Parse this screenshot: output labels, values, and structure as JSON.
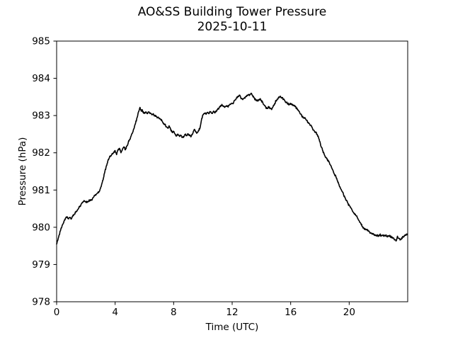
{
  "title": {
    "line1": "AO&SS Building Tower Pressure",
    "line2": "2025-10-11"
  },
  "chart_data": {
    "type": "line",
    "title": "AO&SS Building Tower Pressure",
    "subtitle": "2025-10-11",
    "xlabel": "Time (UTC)",
    "ylabel": "Pressure (hPa)",
    "xlim": [
      0,
      24
    ],
    "ylim": [
      978,
      985
    ],
    "xticks": [
      0,
      4,
      8,
      12,
      16,
      20
    ],
    "yticks": [
      978,
      979,
      980,
      981,
      982,
      983,
      984,
      985
    ],
    "grid": false,
    "legend": "none",
    "line_color": "#000000",
    "background_color": "#ffffff",
    "series": [
      {
        "name": "pressure",
        "units": "hPa",
        "points": [
          [
            0.0,
            979.55
          ],
          [
            0.08,
            979.65
          ],
          [
            0.16,
            979.78
          ],
          [
            0.25,
            979.9
          ],
          [
            0.33,
            979.98
          ],
          [
            0.42,
            980.08
          ],
          [
            0.5,
            980.16
          ],
          [
            0.6,
            980.24
          ],
          [
            0.7,
            980.28
          ],
          [
            0.8,
            980.24
          ],
          [
            0.9,
            980.26
          ],
          [
            1.0,
            980.22
          ],
          [
            1.1,
            980.3
          ],
          [
            1.2,
            980.35
          ],
          [
            1.3,
            980.4
          ],
          [
            1.4,
            980.44
          ],
          [
            1.5,
            980.5
          ],
          [
            1.6,
            980.57
          ],
          [
            1.7,
            980.63
          ],
          [
            1.8,
            980.67
          ],
          [
            1.9,
            980.71
          ],
          [
            2.0,
            980.69
          ],
          [
            2.1,
            980.67
          ],
          [
            2.2,
            980.71
          ],
          [
            2.3,
            980.74
          ],
          [
            2.4,
            980.73
          ],
          [
            2.5,
            980.8
          ],
          [
            2.6,
            980.85
          ],
          [
            2.7,
            980.88
          ],
          [
            2.8,
            980.92
          ],
          [
            2.9,
            980.96
          ],
          [
            3.0,
            981.05
          ],
          [
            3.1,
            981.18
          ],
          [
            3.2,
            981.32
          ],
          [
            3.3,
            981.5
          ],
          [
            3.4,
            981.65
          ],
          [
            3.5,
            981.78
          ],
          [
            3.6,
            981.86
          ],
          [
            3.7,
            981.92
          ],
          [
            3.8,
            981.98
          ],
          [
            3.9,
            982.02
          ],
          [
            4.0,
            982.06
          ],
          [
            4.1,
            981.95
          ],
          [
            4.2,
            982.08
          ],
          [
            4.3,
            982.12
          ],
          [
            4.4,
            982.0
          ],
          [
            4.5,
            982.1
          ],
          [
            4.6,
            982.16
          ],
          [
            4.7,
            982.08
          ],
          [
            4.8,
            982.18
          ],
          [
            4.9,
            982.28
          ],
          [
            5.0,
            982.36
          ],
          [
            5.1,
            982.46
          ],
          [
            5.2,
            982.55
          ],
          [
            5.3,
            982.66
          ],
          [
            5.4,
            982.8
          ],
          [
            5.5,
            982.95
          ],
          [
            5.6,
            983.1
          ],
          [
            5.7,
            983.22
          ],
          [
            5.78,
            983.12
          ],
          [
            5.85,
            983.16
          ],
          [
            5.95,
            983.06
          ],
          [
            6.1,
            983.1
          ],
          [
            6.2,
            983.05
          ],
          [
            6.3,
            983.1
          ],
          [
            6.4,
            983.07
          ],
          [
            6.5,
            983.03
          ],
          [
            6.6,
            983.05
          ],
          [
            6.7,
            983.0
          ],
          [
            6.8,
            982.98
          ],
          [
            6.9,
            982.95
          ],
          [
            7.0,
            982.93
          ],
          [
            7.1,
            982.9
          ],
          [
            7.2,
            982.86
          ],
          [
            7.3,
            982.8
          ],
          [
            7.4,
            982.76
          ],
          [
            7.5,
            982.7
          ],
          [
            7.6,
            982.66
          ],
          [
            7.7,
            982.72
          ],
          [
            7.8,
            982.62
          ],
          [
            7.9,
            982.55
          ],
          [
            8.0,
            982.56
          ],
          [
            8.1,
            982.5
          ],
          [
            8.2,
            982.45
          ],
          [
            8.3,
            982.5
          ],
          [
            8.4,
            982.44
          ],
          [
            8.5,
            982.47
          ],
          [
            8.6,
            982.42
          ],
          [
            8.7,
            982.44
          ],
          [
            8.8,
            982.5
          ],
          [
            8.9,
            982.46
          ],
          [
            9.0,
            982.5
          ],
          [
            9.1,
            982.46
          ],
          [
            9.2,
            982.44
          ],
          [
            9.3,
            982.52
          ],
          [
            9.4,
            982.62
          ],
          [
            9.5,
            982.56
          ],
          [
            9.6,
            982.54
          ],
          [
            9.7,
            982.6
          ],
          [
            9.8,
            982.66
          ],
          [
            9.9,
            982.88
          ],
          [
            10.0,
            983.02
          ],
          [
            10.1,
            983.06
          ],
          [
            10.2,
            983.04
          ],
          [
            10.3,
            983.08
          ],
          [
            10.4,
            983.05
          ],
          [
            10.5,
            983.1
          ],
          [
            10.6,
            983.06
          ],
          [
            10.7,
            983.1
          ],
          [
            10.8,
            983.08
          ],
          [
            10.9,
            983.12
          ],
          [
            11.0,
            983.16
          ],
          [
            11.1,
            983.2
          ],
          [
            11.2,
            983.24
          ],
          [
            11.3,
            983.3
          ],
          [
            11.4,
            983.26
          ],
          [
            11.5,
            983.22
          ],
          [
            11.6,
            983.26
          ],
          [
            11.7,
            983.24
          ],
          [
            11.8,
            983.28
          ],
          [
            11.9,
            983.3
          ],
          [
            12.0,
            983.33
          ],
          [
            12.1,
            983.35
          ],
          [
            12.2,
            983.42
          ],
          [
            12.3,
            983.47
          ],
          [
            12.4,
            983.52
          ],
          [
            12.5,
            983.55
          ],
          [
            12.6,
            983.46
          ],
          [
            12.7,
            983.44
          ],
          [
            12.8,
            983.46
          ],
          [
            12.9,
            983.5
          ],
          [
            13.0,
            983.54
          ],
          [
            13.1,
            983.56
          ],
          [
            13.2,
            983.55
          ],
          [
            13.3,
            983.6
          ],
          [
            13.4,
            983.54
          ],
          [
            13.5,
            983.48
          ],
          [
            13.6,
            983.42
          ],
          [
            13.7,
            983.39
          ],
          [
            13.8,
            983.42
          ],
          [
            13.9,
            983.45
          ],
          [
            14.0,
            983.4
          ],
          [
            14.1,
            983.34
          ],
          [
            14.2,
            983.28
          ],
          [
            14.3,
            983.22
          ],
          [
            14.4,
            983.19
          ],
          [
            14.5,
            983.24
          ],
          [
            14.6,
            983.2
          ],
          [
            14.7,
            983.16
          ],
          [
            14.8,
            983.24
          ],
          [
            14.9,
            983.32
          ],
          [
            15.0,
            983.4
          ],
          [
            15.1,
            983.44
          ],
          [
            15.2,
            983.49
          ],
          [
            15.3,
            983.52
          ],
          [
            15.4,
            983.48
          ],
          [
            15.5,
            983.44
          ],
          [
            15.6,
            983.4
          ],
          [
            15.7,
            983.36
          ],
          [
            15.8,
            983.32
          ],
          [
            15.9,
            983.3
          ],
          [
            16.0,
            983.32
          ],
          [
            16.1,
            983.3
          ],
          [
            16.2,
            983.27
          ],
          [
            16.3,
            983.24
          ],
          [
            16.4,
            983.2
          ],
          [
            16.5,
            983.15
          ],
          [
            16.6,
            983.1
          ],
          [
            16.7,
            983.04
          ],
          [
            16.8,
            982.97
          ],
          [
            16.9,
            982.94
          ],
          [
            17.0,
            982.92
          ],
          [
            17.1,
            982.87
          ],
          [
            17.2,
            982.82
          ],
          [
            17.3,
            982.77
          ],
          [
            17.4,
            982.74
          ],
          [
            17.5,
            982.65
          ],
          [
            17.6,
            982.6
          ],
          [
            17.7,
            982.56
          ],
          [
            17.8,
            982.5
          ],
          [
            17.9,
            982.42
          ],
          [
            18.0,
            982.3
          ],
          [
            18.1,
            982.15
          ],
          [
            18.2,
            982.05
          ],
          [
            18.3,
            981.95
          ],
          [
            18.4,
            981.88
          ],
          [
            18.5,
            981.82
          ],
          [
            18.6,
            981.78
          ],
          [
            18.7,
            981.68
          ],
          [
            18.8,
            981.6
          ],
          [
            18.9,
            981.52
          ],
          [
            19.0,
            981.42
          ],
          [
            19.1,
            981.35
          ],
          [
            19.2,
            981.25
          ],
          [
            19.3,
            981.15
          ],
          [
            19.4,
            981.05
          ],
          [
            19.5,
            980.97
          ],
          [
            19.6,
            980.9
          ],
          [
            19.7,
            980.8
          ],
          [
            19.8,
            980.73
          ],
          [
            19.9,
            980.65
          ],
          [
            20.0,
            980.58
          ],
          [
            20.1,
            980.52
          ],
          [
            20.2,
            980.46
          ],
          [
            20.3,
            980.4
          ],
          [
            20.4,
            980.34
          ],
          [
            20.5,
            980.3
          ],
          [
            20.6,
            980.23
          ],
          [
            20.7,
            980.16
          ],
          [
            20.8,
            980.1
          ],
          [
            20.9,
            980.02
          ],
          [
            21.0,
            979.97
          ],
          [
            21.1,
            979.95
          ],
          [
            21.2,
            979.93
          ],
          [
            21.3,
            979.9
          ],
          [
            21.4,
            979.87
          ],
          [
            21.5,
            979.84
          ],
          [
            21.6,
            979.82
          ],
          [
            21.7,
            979.8
          ],
          [
            21.8,
            979.79
          ],
          [
            21.9,
            979.78
          ],
          [
            22.0,
            979.77
          ],
          [
            22.1,
            979.8
          ],
          [
            22.2,
            979.78
          ],
          [
            22.3,
            979.79
          ],
          [
            22.4,
            979.77
          ],
          [
            22.5,
            979.78
          ],
          [
            22.6,
            979.76
          ],
          [
            22.7,
            979.77
          ],
          [
            22.8,
            979.76
          ],
          [
            22.9,
            979.74
          ],
          [
            23.0,
            979.71
          ],
          [
            23.1,
            979.66
          ],
          [
            23.2,
            979.63
          ],
          [
            23.3,
            979.76
          ],
          [
            23.4,
            979.7
          ],
          [
            23.5,
            979.67
          ],
          [
            23.6,
            979.72
          ],
          [
            23.7,
            979.74
          ],
          [
            23.8,
            979.78
          ],
          [
            23.9,
            979.8
          ],
          [
            23.98,
            979.82
          ]
        ]
      }
    ]
  }
}
